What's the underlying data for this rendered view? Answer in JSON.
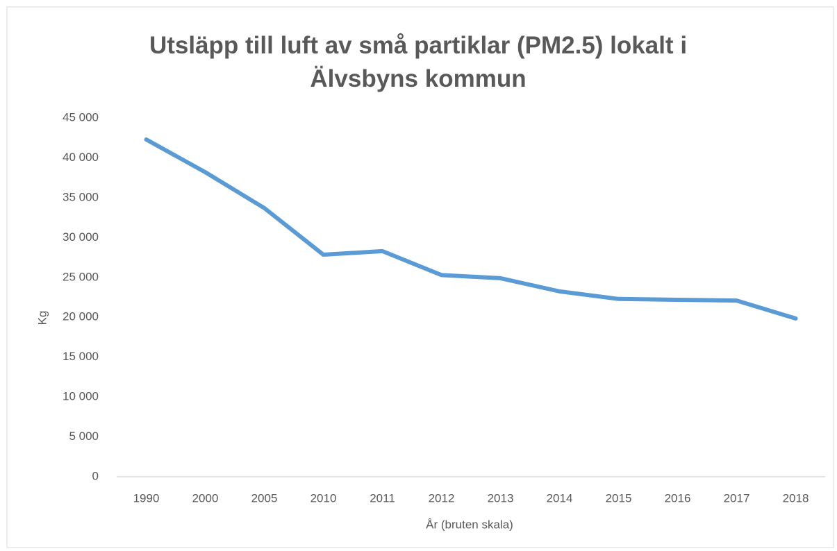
{
  "chart_data": {
    "type": "line",
    "title": "Utsläpp till luft av små partiklar (PM2.5) lokalt i Älvsbyns kommun",
    "xlabel": "År (bruten skala)",
    "ylabel": "Kg",
    "categories": [
      "1990",
      "2000",
      "2005",
      "2010",
      "2011",
      "2012",
      "2013",
      "2014",
      "2015",
      "2016",
      "2017",
      "2018"
    ],
    "series": [
      {
        "color": "#5b9bd5",
        "values": [
          42300,
          38200,
          33700,
          27850,
          28300,
          25300,
          24900,
          23250,
          22300,
          22200,
          22100,
          19850
        ]
      }
    ],
    "ylim": [
      0,
      45000
    ],
    "yticks": [
      0,
      {
        "value": 5000,
        "label": "5 000"
      },
      {
        "value": 10000,
        "label": "10 000"
      },
      {
        "value": 15000,
        "label": "15 000"
      },
      {
        "value": 20000,
        "label": "20 000"
      },
      {
        "value": 25000,
        "label": "25 000"
      },
      {
        "value": 30000,
        "label": "30 000"
      },
      {
        "value": 35000,
        "label": "35 000"
      },
      {
        "value": 40000,
        "label": "40 000"
      },
      {
        "value": 45000,
        "label": "45 000"
      }
    ],
    "grid": false
  }
}
